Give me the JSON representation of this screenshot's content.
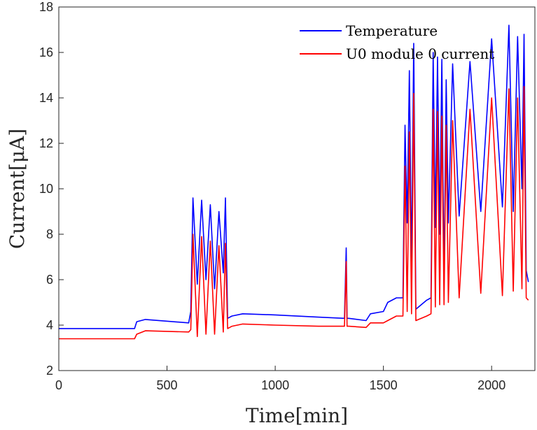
{
  "chart_data": {
    "type": "line",
    "xlabel": "Time[min]",
    "ylabel": "Current[μA]",
    "xlim": [
      0,
      2200
    ],
    "ylim": [
      2,
      18
    ],
    "xticks": [
      0,
      500,
      1000,
      1500,
      2000
    ],
    "yticks": [
      2,
      4,
      6,
      8,
      10,
      12,
      14,
      16,
      18
    ],
    "grid": false,
    "legend_position": "top-right",
    "series": [
      {
        "name": "Temperature",
        "color": "#0000ff",
        "x": [
          0,
          350,
          360,
          400,
          600,
          610,
          620,
          640,
          660,
          680,
          700,
          720,
          740,
          760,
          770,
          780,
          800,
          850,
          1000,
          1200,
          1320,
          1328,
          1332,
          1340,
          1420,
          1440,
          1500,
          1520,
          1560,
          1590,
          1600,
          1610,
          1620,
          1630,
          1640,
          1650,
          1700,
          1720,
          1730,
          1740,
          1750,
          1760,
          1770,
          1780,
          1790,
          1800,
          1820,
          1850,
          1900,
          1950,
          2000,
          2050,
          2080,
          2100,
          2120,
          2140,
          2150,
          2160,
          2170
        ],
        "y": [
          3.85,
          3.85,
          4.15,
          4.25,
          4.1,
          4.6,
          9.6,
          5.8,
          9.5,
          6.0,
          9.3,
          5.6,
          9.0,
          6.3,
          9.6,
          4.3,
          4.4,
          4.5,
          4.45,
          4.35,
          4.3,
          7.4,
          4.3,
          4.3,
          4.2,
          4.5,
          4.6,
          5.0,
          5.2,
          5.2,
          12.8,
          8.5,
          15.2,
          6.5,
          16.4,
          4.7,
          5.1,
          5.2,
          16.0,
          8.3,
          15.8,
          8.0,
          15.7,
          5.8,
          14.8,
          8.5,
          15.5,
          8.8,
          15.6,
          9.0,
          16.6,
          9.2,
          17.2,
          9.0,
          16.7,
          10.0,
          16.8,
          6.4,
          5.9
        ]
      },
      {
        "name": "U0 module 0 current",
        "color": "#ff0000",
        "x": [
          0,
          350,
          360,
          400,
          600,
          610,
          620,
          640,
          660,
          680,
          700,
          720,
          740,
          760,
          770,
          780,
          800,
          850,
          1000,
          1200,
          1320,
          1328,
          1332,
          1340,
          1420,
          1440,
          1500,
          1520,
          1560,
          1590,
          1600,
          1610,
          1620,
          1630,
          1640,
          1650,
          1700,
          1720,
          1730,
          1740,
          1750,
          1760,
          1770,
          1780,
          1790,
          1800,
          1820,
          1850,
          1900,
          1950,
          2000,
          2050,
          2080,
          2100,
          2120,
          2140,
          2150,
          2160,
          2170
        ],
        "y": [
          3.4,
          3.4,
          3.6,
          3.75,
          3.7,
          3.8,
          8.0,
          3.5,
          7.9,
          3.6,
          7.7,
          3.6,
          7.5,
          3.7,
          7.6,
          3.85,
          3.95,
          4.05,
          4.0,
          3.95,
          3.95,
          6.8,
          3.95,
          3.95,
          3.9,
          4.1,
          4.1,
          4.2,
          4.4,
          4.4,
          11.0,
          4.6,
          12.5,
          4.5,
          14.2,
          4.2,
          4.4,
          4.5,
          13.5,
          4.8,
          13.4,
          4.9,
          13.2,
          4.9,
          12.8,
          5.0,
          13.0,
          5.2,
          13.5,
          5.4,
          14.0,
          5.3,
          14.4,
          5.5,
          14.0,
          5.6,
          14.5,
          5.2,
          5.1
        ]
      }
    ]
  }
}
